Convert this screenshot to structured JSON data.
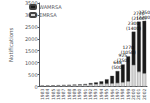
{
  "chart_data": {
    "type": "bar",
    "stacked": true,
    "categories": [
      "1983",
      "1984",
      "1985",
      "1986",
      "1987",
      "1988",
      "1989",
      "1990",
      "1991",
      "1992",
      "1993",
      "1994",
      "1995",
      "1996",
      "1997",
      "1998",
      "1999",
      "2000",
      "2001",
      "2002"
    ],
    "series": [
      {
        "name": "EMRSA",
        "color": "#d8d8d8",
        "values": [
          28,
          32,
          38,
          42,
          48,
          52,
          58,
          65,
          78,
          88,
          98,
          108,
          118,
          128,
          148,
          175,
          220,
          900,
          620,
          550
        ]
      },
      {
        "name": "WAMRSA",
        "color": "#1a1a1a",
        "values": [
          5,
          8,
          10,
          12,
          15,
          18,
          20,
          25,
          30,
          55,
          75,
          110,
          185,
          320,
          500,
          750,
          1050,
          1400,
          2100,
          2200
        ]
      }
    ],
    "ylabel": "Notifications",
    "ylim": [
      0,
      3500
    ],
    "yticks": [
      0,
      500,
      1000,
      1500,
      2000,
      2500,
      3000,
      3500
    ],
    "grid": false,
    "legend": "upper left",
    "annotations": [
      {
        "x": "1997",
        "text": "648\n(500)"
      },
      {
        "x": "1998",
        "text": "925\n(750)"
      },
      {
        "x": "1999",
        "text": "1270\n(1050)"
      },
      {
        "x": "2000",
        "text": "2300\n(1400)"
      },
      {
        "x": "2001",
        "text": "2720\n(2100)"
      },
      {
        "x": "2002",
        "text": "2750\n(2200)"
      }
    ]
  }
}
